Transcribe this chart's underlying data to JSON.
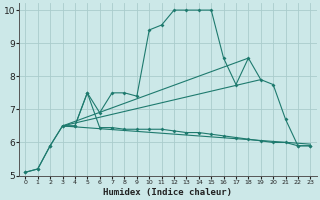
{
  "xlabel": "Humidex (Indice chaleur)",
  "bg_color": "#cce8e8",
  "grid_color": "#aacccc",
  "line_color": "#1e7a6e",
  "xlim": [
    -0.5,
    23.5
  ],
  "ylim": [
    5,
    10.2
  ],
  "xticks": [
    0,
    1,
    2,
    3,
    4,
    5,
    6,
    7,
    8,
    9,
    10,
    11,
    12,
    13,
    14,
    15,
    16,
    17,
    18,
    19,
    20,
    21,
    22,
    23
  ],
  "yticks": [
    5,
    6,
    7,
    8,
    9,
    10
  ],
  "line1_x": [
    0,
    1,
    2,
    3,
    4,
    5,
    6,
    7,
    8,
    9,
    10,
    11,
    12,
    13,
    14,
    15,
    16,
    17,
    18,
    19,
    20,
    21,
    22,
    23
  ],
  "line1_y": [
    5.1,
    5.2,
    5.9,
    6.5,
    6.5,
    7.5,
    6.9,
    7.5,
    7.5,
    7.4,
    9.4,
    9.55,
    10.0,
    10.0,
    10.0,
    10.0,
    8.55,
    7.75,
    8.55,
    7.9,
    7.75,
    6.7,
    5.9,
    5.9
  ],
  "line2_x": [
    0,
    1,
    2,
    3,
    4,
    5,
    6,
    7,
    8,
    9,
    10,
    11,
    12,
    13,
    14,
    15,
    16,
    17,
    18,
    19,
    20,
    21,
    22,
    23
  ],
  "line2_y": [
    5.1,
    5.2,
    5.9,
    6.5,
    6.5,
    7.5,
    6.45,
    6.45,
    6.4,
    6.4,
    6.4,
    6.4,
    6.35,
    6.3,
    6.3,
    6.25,
    6.2,
    6.15,
    6.1,
    6.05,
    6.0,
    6.0,
    5.9,
    5.9
  ],
  "line3_x": [
    3,
    23
  ],
  "line3_y": [
    6.5,
    5.95
  ],
  "line4_x": [
    3,
    19
  ],
  "line4_y": [
    6.5,
    7.9
  ],
  "line5_x": [
    3,
    18
  ],
  "line5_y": [
    6.5,
    8.55
  ]
}
